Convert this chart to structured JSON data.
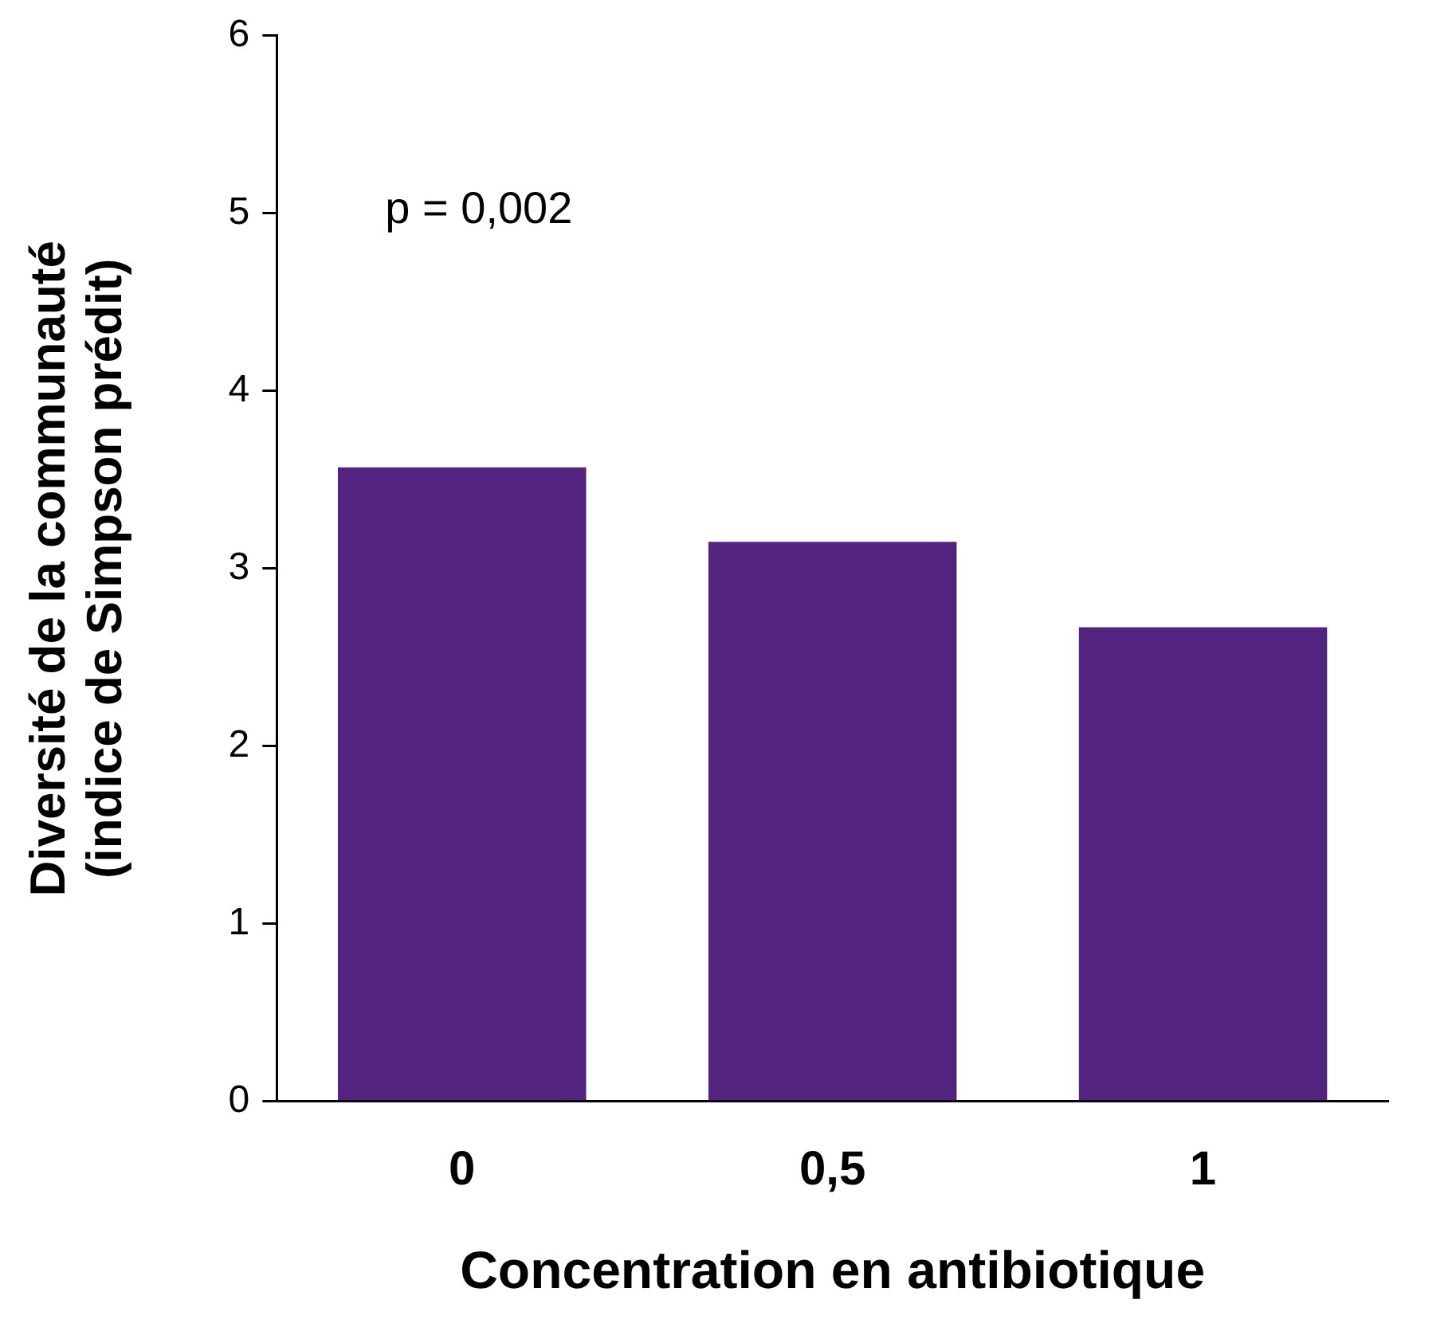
{
  "chart_data": {
    "type": "bar",
    "xlabel": "Concentration en antibiotique",
    "ylabel": "Diversité de la communauté\n(indice de Simpson prédit)",
    "categories": [
      "0",
      "0,5",
      "1"
    ],
    "values": [
      3.57,
      3.15,
      2.67
    ],
    "color": "#52247f",
    "ylim": [
      0,
      6
    ],
    "yticks": [
      0,
      1,
      2,
      3,
      4,
      5,
      6
    ],
    "grid": false,
    "legend": false,
    "annotations": [
      "p = 0,002"
    ]
  }
}
